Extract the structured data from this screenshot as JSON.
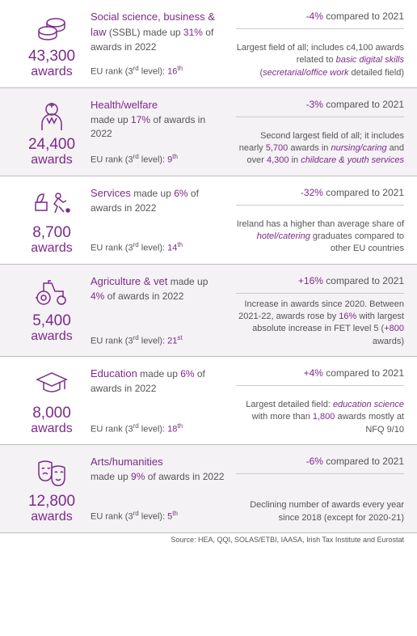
{
  "brand_color": "#7d2a8a",
  "awards_label": "awards",
  "compared_label": "compared to 2021",
  "rank_prefix": "EU rank (3",
  "rank_mid": " level): ",
  "source": "Source: HEA, QQI, SOLAS/ETBI, IAASA, Irish Tax Institute and Eurostat",
  "rows": [
    {
      "count": "43,300",
      "title_html": "Social science, business & law",
      "desc_tail": " (SSBL) made up <span class='purple'>31%</span> of awards in 2022",
      "rank": "16",
      "rank_suffix": "th",
      "change": "-4%",
      "note_html": "Largest field of all; includes c4,100 awards related to <span class='em'>basic digital skills</span> (<span class='em'>secretarial/office work</span> detailed field)"
    },
    {
      "count": "24,400",
      "title_html": "Health/welfare",
      "desc_tail": " made up <span class='purple'>17%</span> of awards in 2022",
      "rank": "9",
      "rank_suffix": "th",
      "change": "-3%",
      "note_html": "Second largest field of all; it includes nearly <span class='purple'>5,700</span> awards in <span class='em'>nursing/caring</span> and over <span class='purple'>4,300</span> in <span class='em'>childcare & youth services</span>"
    },
    {
      "count": "8,700",
      "title_html": "Services",
      "desc_tail": " made up <span class='purple'>6%</span> of awards in 2022",
      "rank": "14",
      "rank_suffix": "th",
      "change": "-32%",
      "note_html": "Ireland has a higher than average share of <span class='em'>hotel/catering</span> graduates compared to other EU countries"
    },
    {
      "count": "5,400",
      "title_html": "Agriculture & vet",
      "desc_tail": " made up <span class='purple'>4%</span> of awards in 2022",
      "rank": "21",
      "rank_suffix": "st",
      "change": "+16%",
      "note_html": "Increase in awards since 2020. Between 2021-22, awards rose by <span class='purple'>16%</span> with largest absolute increase in FET level 5 (<span class='purple'>+800</span> awards)"
    },
    {
      "count": "8,000",
      "title_html": "Education",
      "desc_tail": " made up <span class='purple'>6%</span> of awards in 2022",
      "rank": "18",
      "rank_suffix": "th",
      "change": "+4%",
      "note_html": "Largest detailed field: <span class='em'>education science</span> with more than <span class='purple'>1,800</span> awards mostly at NFQ 9/10"
    },
    {
      "count": "12,800",
      "title_html": "Arts/humanities",
      "desc_tail": " made up <span class='purple'>9%</span> of awards in 2022",
      "rank": "5",
      "rank_suffix": "th",
      "change": "-6%",
      "note_html": "Declining number of awards every year since 2018 (except for 2020-21)"
    }
  ]
}
